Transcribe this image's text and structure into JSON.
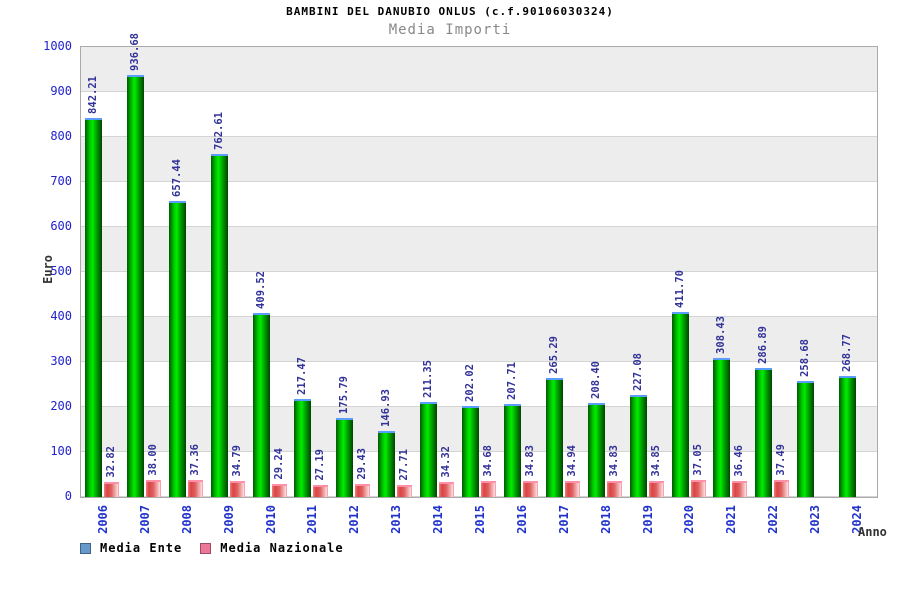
{
  "header": {
    "title": "BAMBINI DEL DANUBIO ONLUS (c.f.90106030324)",
    "subtitle": "Media Importi"
  },
  "chart_data": {
    "type": "bar",
    "title": "BAMBINI DEL DANUBIO ONLUS (c.f.90106030324)",
    "subtitle": "Media Importi",
    "xlabel": "Anno",
    "ylabel": "Euro",
    "ylim": [
      0,
      1000
    ],
    "ytick_step": 100,
    "grid": "horizontal-bands-alternating",
    "legend_position": "bottom-left",
    "categories": [
      "2006",
      "2007",
      "2008",
      "2009",
      "2010",
      "2011",
      "2012",
      "2013",
      "2014",
      "2015",
      "2016",
      "2017",
      "2018",
      "2019",
      "2020",
      "2021",
      "2022",
      "2023",
      "2024"
    ],
    "series": [
      {
        "name": "Media Ente",
        "legend_color": "#6699cc",
        "bar_color": "#00cc00",
        "values": [
          842.21,
          936.68,
          657.44,
          762.61,
          409.52,
          217.47,
          175.79,
          146.93,
          211.35,
          202.02,
          207.71,
          265.29,
          208.4,
          227.08,
          411.7,
          308.43,
          286.89,
          258.68,
          268.77
        ]
      },
      {
        "name": "Media Nazionale",
        "legend_color": "#ee7799",
        "bar_color": "#dd4444",
        "values": [
          32.82,
          38.0,
          37.36,
          34.79,
          29.24,
          27.19,
          29.43,
          27.71,
          34.32,
          34.68,
          34.83,
          34.94,
          34.83,
          34.85,
          37.05,
          36.46,
          37.49,
          null,
          null
        ]
      }
    ],
    "value_label_format": "2-decimals",
    "colors": {
      "tick_label": "#2222cc",
      "value_label": "#333399",
      "axis_title": "#333333",
      "band_gray": "#ededed",
      "band_white": "#ffffff",
      "gridline": "#d4d4d4"
    }
  }
}
